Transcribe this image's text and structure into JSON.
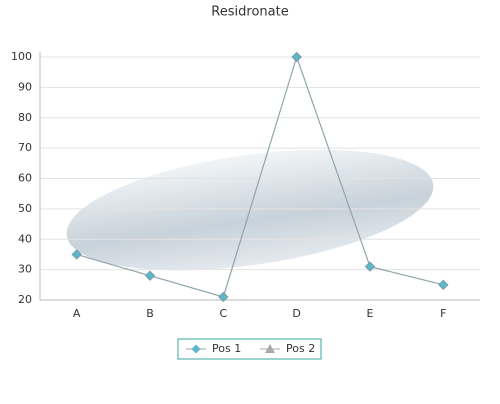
{
  "chart_data": {
    "type": "line",
    "title": "Residronate",
    "categories": [
      "A",
      "B",
      "C",
      "D",
      "E",
      "F"
    ],
    "series": [
      {
        "name": "Pos 1",
        "color": "#5bb8c8",
        "line_color": "#8fa5ad",
        "values": [
          35,
          28,
          21,
          100,
          31,
          25
        ]
      },
      {
        "name": "Pos 2",
        "color": "#a9a9a9",
        "values": [
          null,
          null,
          null,
          null,
          null,
          null
        ]
      }
    ],
    "ylim": [
      20,
      100
    ],
    "yticks": [
      20,
      30,
      40,
      50,
      60,
      70,
      80,
      90,
      100
    ],
    "grid": true,
    "legend": "bottom"
  }
}
